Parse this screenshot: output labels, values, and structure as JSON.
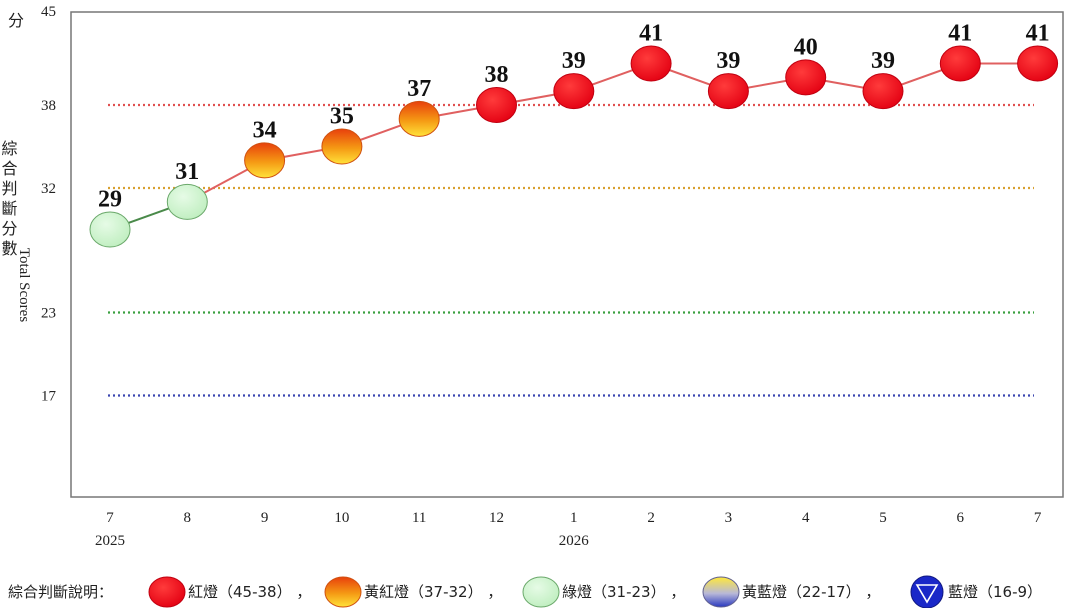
{
  "chart_data": {
    "type": "line",
    "y_unit": "分",
    "ylabel_zh": "綜合判斷分數",
    "ylabel_en": "Total Scores",
    "ylim": [
      9,
      45
    ],
    "y_ticks": [
      45,
      38,
      32,
      23,
      17
    ],
    "threshold_lines": [
      {
        "value": 38,
        "color": "#e05050"
      },
      {
        "value": 32,
        "color": "#d8a030"
      },
      {
        "value": 23,
        "color": "#3aa040"
      },
      {
        "value": 17,
        "color": "#3a46b0"
      }
    ],
    "categories": [
      "7",
      "8",
      "9",
      "10",
      "11",
      "12",
      "1",
      "2",
      "3",
      "4",
      "5",
      "6",
      "7"
    ],
    "year_labels": [
      {
        "index": 0,
        "text": "2025"
      },
      {
        "index": 6,
        "text": "2026"
      }
    ],
    "values": [
      29,
      31,
      34,
      35,
      37,
      38,
      39,
      41,
      39,
      40,
      39,
      41,
      41
    ],
    "signals": [
      "green",
      "green",
      "yellow-red",
      "yellow-red",
      "yellow-red",
      "red",
      "red",
      "red",
      "red",
      "red",
      "red",
      "red",
      "red"
    ],
    "colors": {
      "red": "#e8151b",
      "yellow-red": "#f29a1a",
      "green": "#c8f0c8",
      "line_red": "#e06060",
      "line_green": "#4a8a4a"
    }
  },
  "legend": {
    "title": "綜合判斷說明：",
    "items": [
      {
        "type": "red",
        "label": "紅燈（45-38）",
        "sep": "，"
      },
      {
        "type": "yellow-red",
        "label": "黃紅燈（37-32）",
        "sep": "，"
      },
      {
        "type": "green",
        "label": "綠燈（31-23）",
        "sep": "，"
      },
      {
        "type": "yellow-blue",
        "label": "黃藍燈（22-17）",
        "sep": "，"
      },
      {
        "type": "blue",
        "label": "藍燈（16-9）",
        "sep": ""
      }
    ]
  }
}
